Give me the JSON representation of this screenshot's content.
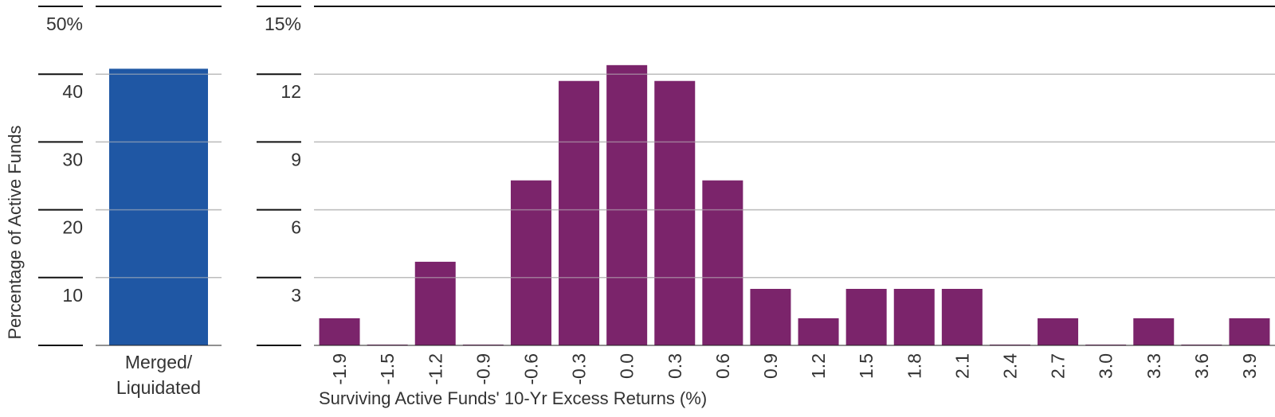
{
  "y_axis_title": "Percentage of Active Funds",
  "chart_data": [
    {
      "type": "bar",
      "categories": [
        "Merged/\nLiquidated"
      ],
      "category_lines": [
        [
          "Merged/",
          "Liquidated"
        ]
      ],
      "values": [
        40.8
      ],
      "ylim": [
        0,
        50
      ],
      "y_ticks": [
        {
          "value": 50,
          "label": "50%"
        },
        {
          "value": 40,
          "label": "40"
        },
        {
          "value": 30,
          "label": "30"
        },
        {
          "value": 20,
          "label": "20"
        },
        {
          "value": 10,
          "label": "10"
        }
      ],
      "color": "#1f57a4"
    },
    {
      "type": "bar",
      "xlabel": "Surviving Active Funds' 10-Yr Excess Returns (%)",
      "categories": [
        "-1.9",
        "-1.5",
        "-1.2",
        "-0.9",
        "-0.6",
        "-0.3",
        "0.0",
        "0.3",
        "0.6",
        "0.9",
        "1.2",
        "1.5",
        "1.8",
        "2.1",
        "2.4",
        "2.7",
        "3.0",
        "3.3",
        "3.6",
        "3.9"
      ],
      "values": [
        1.2,
        0,
        3.7,
        0,
        7.3,
        11.7,
        12.4,
        11.7,
        7.3,
        2.5,
        1.2,
        2.5,
        2.5,
        2.5,
        0,
        1.2,
        0,
        1.2,
        0,
        1.2
      ],
      "ylim": [
        0,
        15
      ],
      "y_ticks": [
        {
          "value": 15,
          "label": "15%"
        },
        {
          "value": 12,
          "label": "12"
        },
        {
          "value": 9,
          "label": "9"
        },
        {
          "value": 6,
          "label": "6"
        },
        {
          "value": 3,
          "label": "3"
        }
      ],
      "color": "#7b246b"
    }
  ]
}
